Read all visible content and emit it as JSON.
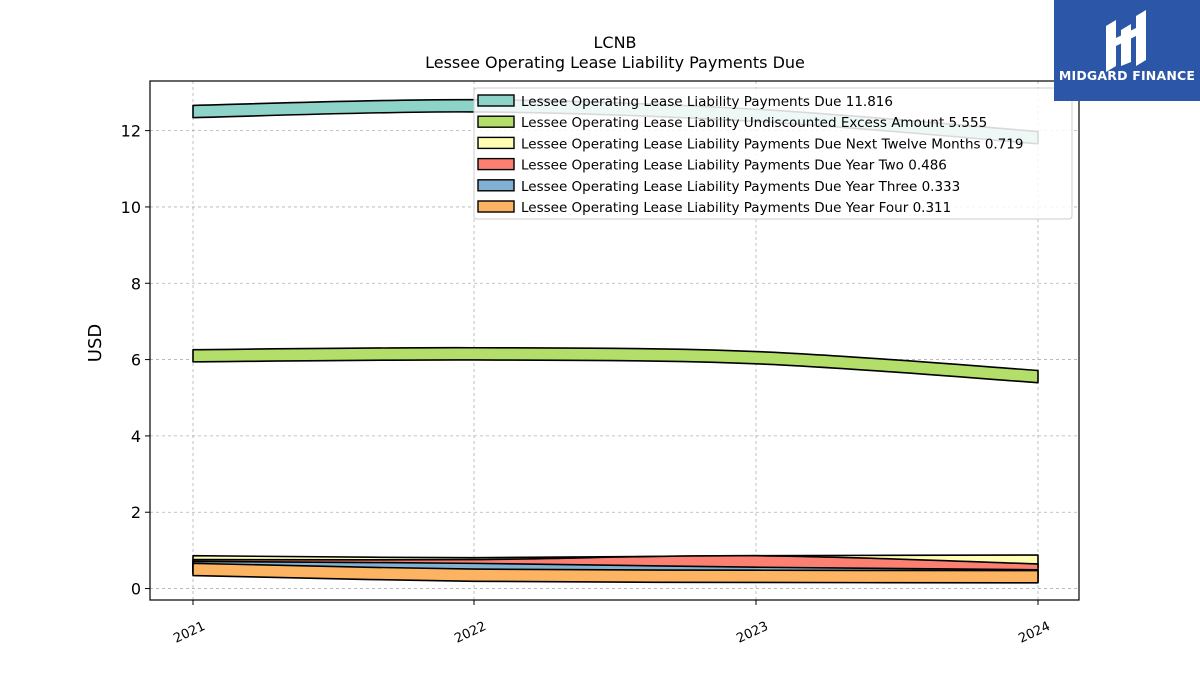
{
  "brand": {
    "name": "MIDGARD FINANCE",
    "color": "#2c57a8"
  },
  "chart_data": {
    "type": "area",
    "title": "LCNB",
    "subtitle": "Lessee Operating Lease Liability Payments Due",
    "xlabel": "",
    "ylabel": "USD",
    "x": [
      "2021",
      "2022",
      "2023",
      "2024"
    ],
    "ylim": [
      -0.3,
      13.3
    ],
    "yticks": [
      0,
      2,
      4,
      6,
      8,
      10,
      12
    ],
    "grid": true,
    "legend_position": "top-right",
    "series": [
      {
        "name": "Lessee Operating Lease Liability Payments Due",
        "legend": "Lessee Operating Lease Liability Payments Due  11.816",
        "values": [
          12.5,
          12.65,
          12.4,
          11.816
        ],
        "color": "#8dd3c7"
      },
      {
        "name": "Lessee Operating Lease Liability Undiscounted Excess Amount",
        "legend": "Lessee Operating Lease Liability Undiscounted Excess Amount  5.555",
        "values": [
          6.1,
          6.15,
          6.05,
          5.555
        ],
        "color": "#b3de69"
      },
      {
        "name": "Lessee Operating Lease Liability Payments Due Next Twelve Months",
        "legend": "Lessee Operating Lease Liability Payments Due Next Twelve Months  0.719",
        "values": [
          0.7,
          0.65,
          0.7,
          0.719
        ],
        "color": "#ffffb3"
      },
      {
        "name": "Lessee Operating Lease Liability Payments Due Year Two",
        "legend": "Lessee Operating Lease Liability Payments Due Year Two  0.486",
        "values": [
          0.6,
          0.6,
          0.7,
          0.486
        ],
        "color": "#fb8072"
      },
      {
        "name": "Lessee Operating Lease Liability Payments Due Year Three",
        "legend": "Lessee Operating Lease Liability Payments Due Year Three  0.333",
        "values": [
          0.55,
          0.5,
          0.4,
          0.333
        ],
        "color": "#80b1d3"
      },
      {
        "name": "Lessee Operating Lease Liability Payments Due Year Four",
        "legend": "Lessee Operating Lease Liability Payments Due Year Four  0.311",
        "values": [
          0.5,
          0.35,
          0.32,
          0.311
        ],
        "color": "#fdb462"
      }
    ]
  }
}
